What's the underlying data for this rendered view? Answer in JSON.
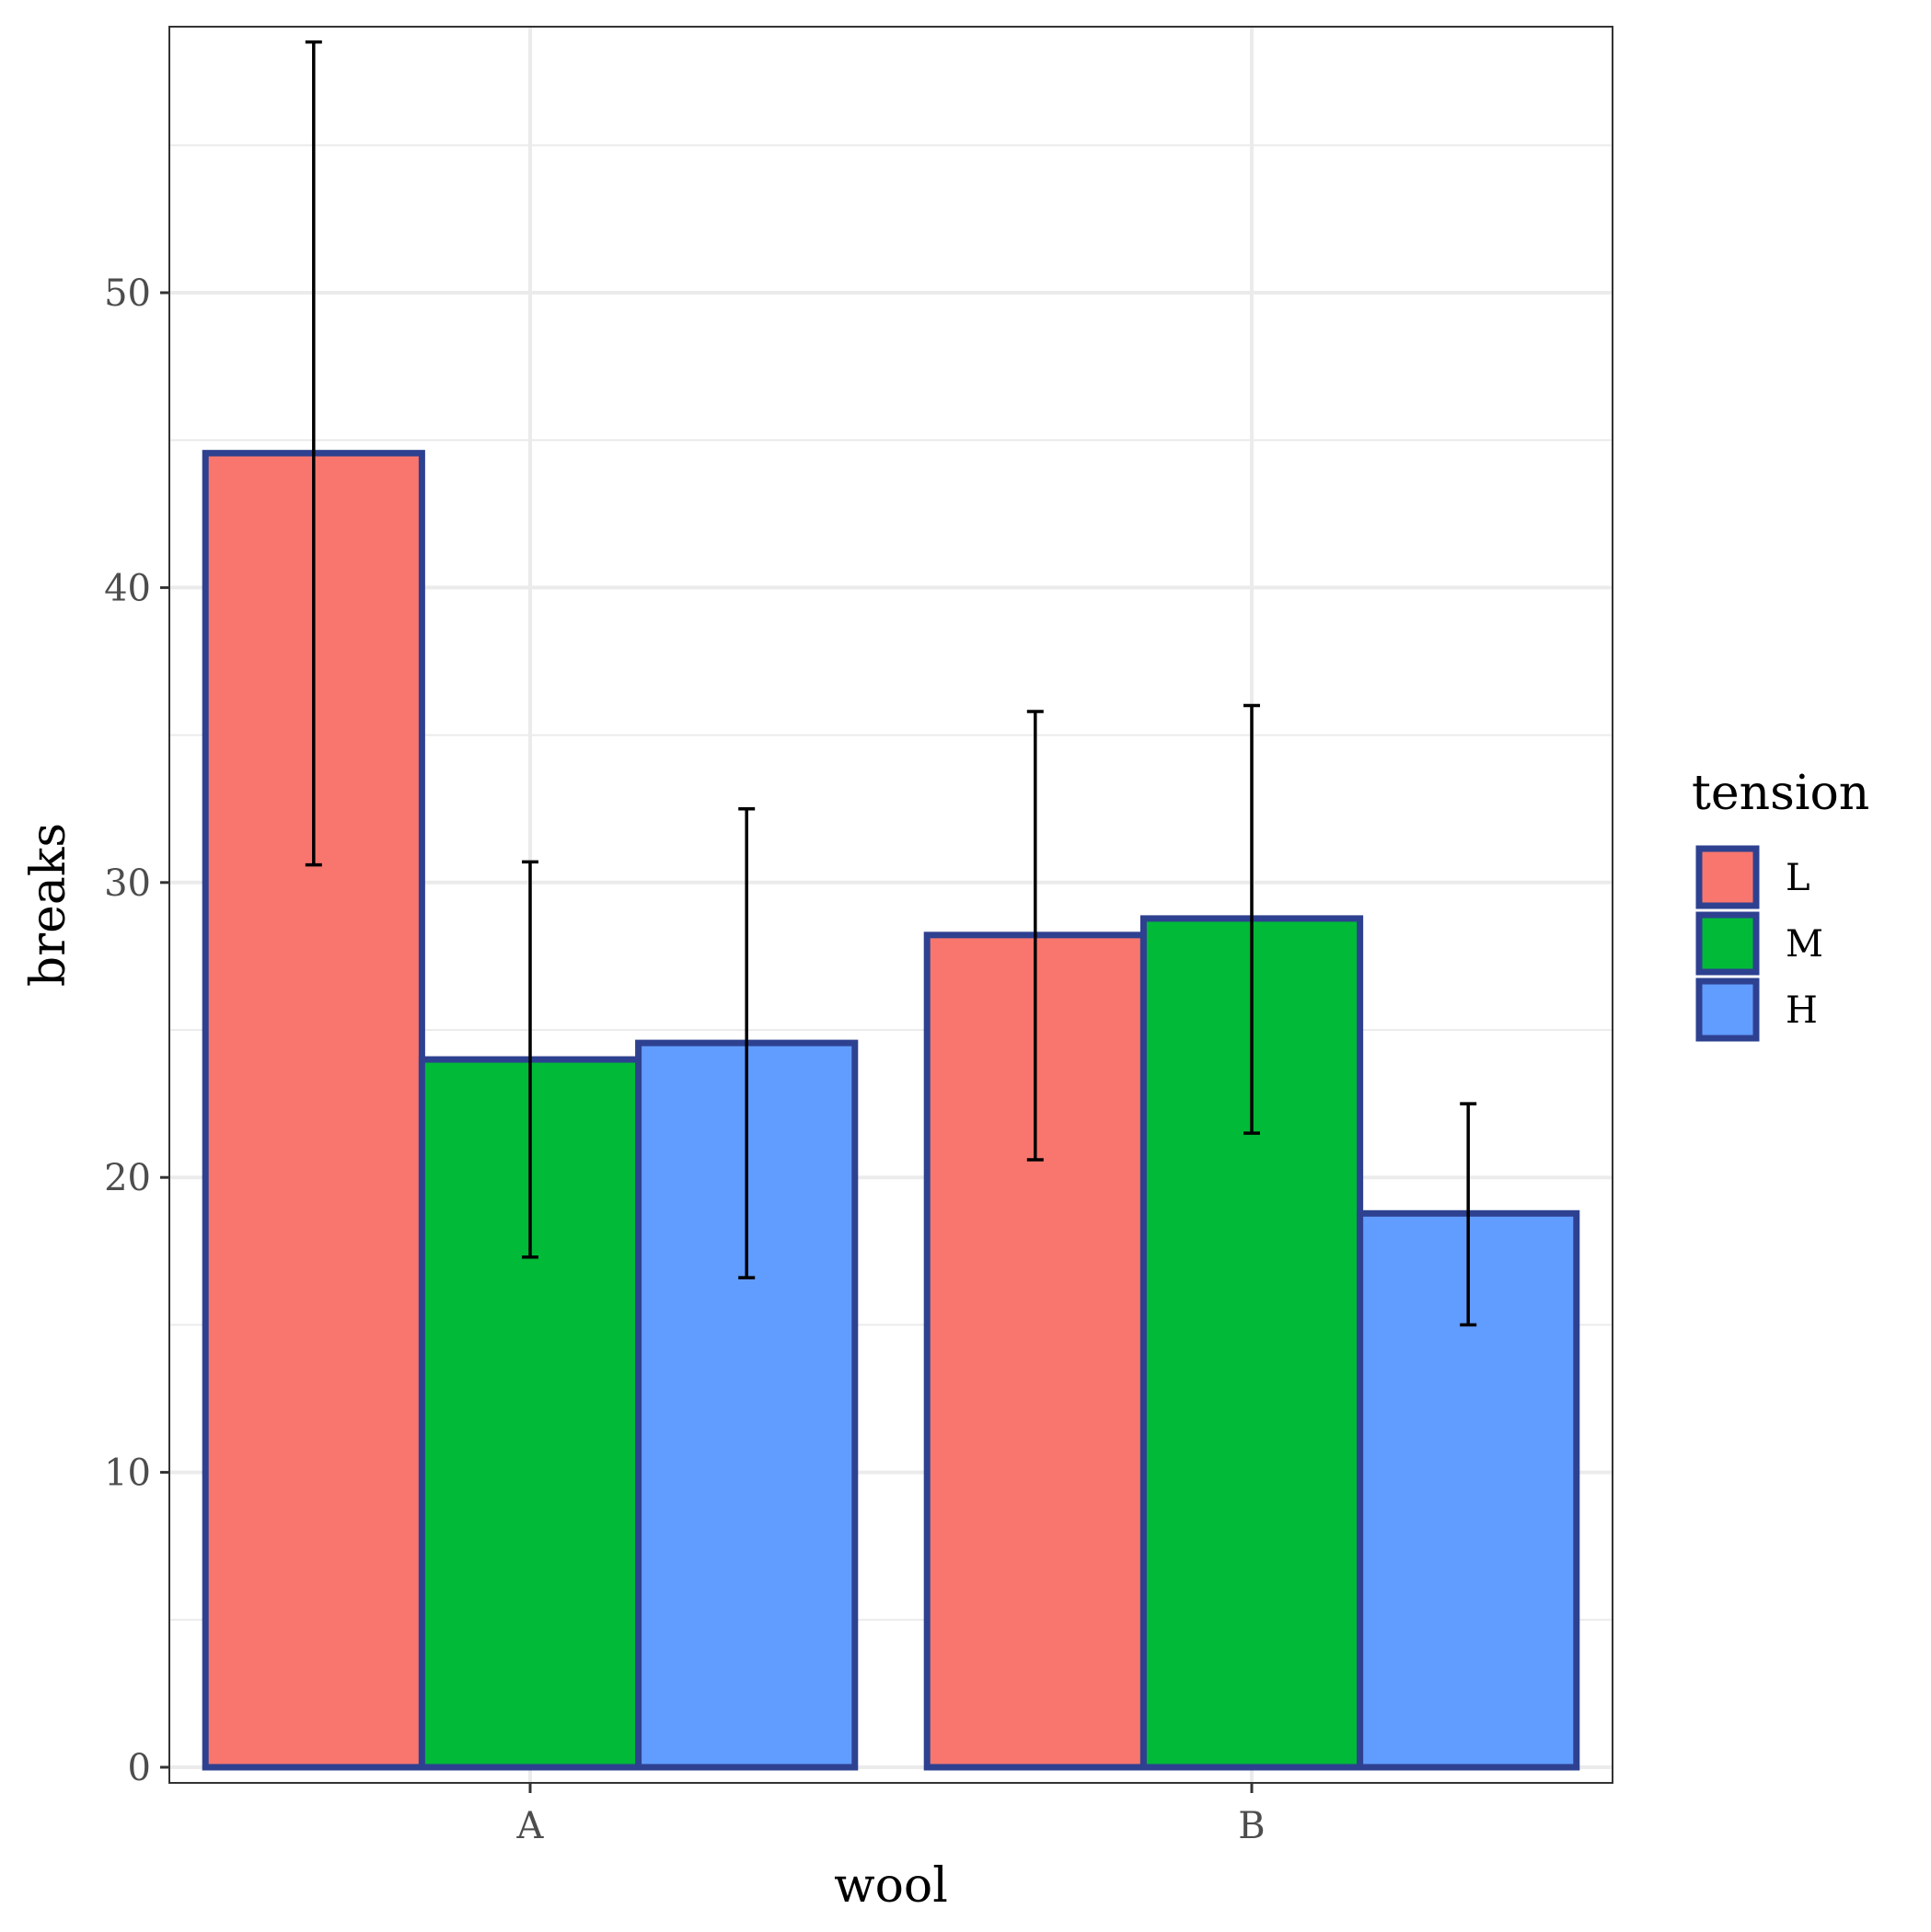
{
  "chart_data": {
    "type": "bar",
    "xlabel": "wool",
    "ylabel": "breaks",
    "categories": [
      "A",
      "B"
    ],
    "ylim": [
      0,
      59
    ],
    "yticks": [
      0,
      10,
      20,
      30,
      40,
      50
    ],
    "grid": true,
    "legend": {
      "title": "tension",
      "position": "right"
    },
    "bar_outline_color": "#2e4190",
    "series": [
      {
        "name": "L",
        "color": "#f8766d",
        "values": [
          44.56,
          28.22
        ],
        "error_low": [
          30.6,
          20.6
        ],
        "error_high": [
          58.5,
          35.8
        ]
      },
      {
        "name": "M",
        "color": "#00ba38",
        "values": [
          24.0,
          28.78
        ],
        "error_low": [
          17.3,
          21.5
        ],
        "error_high": [
          30.7,
          36.0
        ]
      },
      {
        "name": "H",
        "color": "#619cff",
        "values": [
          24.56,
          18.78
        ],
        "error_low": [
          16.6,
          15.0
        ],
        "error_high": [
          32.5,
          22.5
        ]
      }
    ]
  }
}
